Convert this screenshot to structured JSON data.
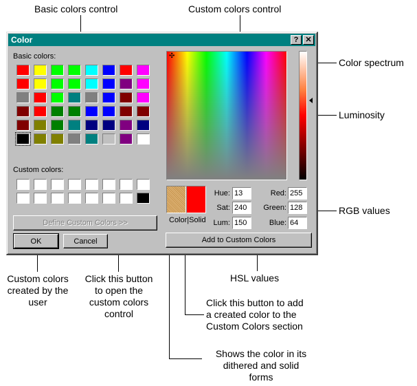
{
  "callouts": {
    "basic_colors_control": "Basic colors control",
    "custom_colors_control": "Custom colors control",
    "color_spectrum": "Color spectrum",
    "luminosity": "Luminosity",
    "rgb_values": "RGB values",
    "hsl_values": "HSL values",
    "custom_colors_user": [
      "Custom colors",
      "created by the",
      "user"
    ],
    "click_open": [
      "Click this button",
      "to open the",
      "custom colors",
      "control"
    ],
    "click_add": [
      "Click this button to add",
      "a created color to the",
      "Custom Colors section"
    ],
    "shows_color": [
      "Shows the color in its",
      "dithered and solid",
      "forms"
    ]
  },
  "dialog": {
    "title": "Color",
    "help_icon": "question-mark-icon",
    "close_icon": "close-x-icon",
    "basic_colors_label": "Basic colors:",
    "custom_colors_label": "Custom colors:",
    "define_button": "Define Custom Colors >>",
    "ok_button": "OK",
    "cancel_button": "Cancel",
    "add_button": "Add to Custom Colors",
    "color_solid_label": "Color|Solid",
    "hue_label": "Hue:",
    "sat_label": "Sat:",
    "lum_label": "Lum:",
    "red_label": "Red:",
    "green_label": "Green:",
    "blue_label": "Blue:",
    "hue": "13",
    "sat": "240",
    "lum": "150",
    "red": "255",
    "green": "128",
    "blue": "64",
    "dithered_color": "#d9a050",
    "solid_color": "#ff0000",
    "basic_colors": [
      [
        "#ff0000",
        "#ffff00",
        "#00ff00",
        "#00ff00",
        "#00ffff",
        "#0000ff",
        "#ff0000",
        "#ff00ff"
      ],
      [
        "#ff0000",
        "#ffff00",
        "#00ff00",
        "#00ff00",
        "#00ffff",
        "#0000ff",
        "#800080",
        "#ff00ff"
      ],
      [
        "#808080",
        "#ff0000",
        "#00ff00",
        "#008080",
        "#808080",
        "#0000ff",
        "#800000",
        "#ff00ff"
      ],
      [
        "#800000",
        "#ff0000",
        "#008000",
        "#008000",
        "#0000ff",
        "#0000ff",
        "#800000",
        "#800000"
      ],
      [
        "#800000",
        "#808000",
        "#008000",
        "#008080",
        "#000080",
        "#000080",
        "#800080",
        "#000080"
      ],
      [
        "#000000",
        "#808000",
        "#808000",
        "#808080",
        "#008080",
        "#c0c0c0",
        "#800080",
        "#ffffff"
      ]
    ],
    "custom_colors": [
      [
        "#ffffff",
        "#ffffff",
        "#ffffff",
        "#ffffff",
        "#ffffff",
        "#ffffff",
        "#ffffff",
        "#ffffff"
      ],
      [
        "#ffffff",
        "#ffffff",
        "#ffffff",
        "#ffffff",
        "#ffffff",
        "#ffffff",
        "#ffffff",
        "#000000"
      ]
    ]
  }
}
